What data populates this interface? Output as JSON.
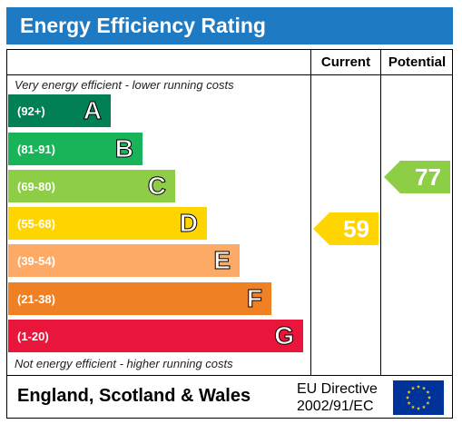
{
  "title": "Energy Efficiency Rating",
  "columns": {
    "current": "Current",
    "potential": "Potential"
  },
  "captions": {
    "top": "Very energy efficient - lower running costs",
    "bottom": "Not energy efficient - higher running costs"
  },
  "bands": [
    {
      "range": "(92+)",
      "letter": "A",
      "color": "#008054"
    },
    {
      "range": "(81-91)",
      "letter": "B",
      "color": "#19b459"
    },
    {
      "range": "(69-80)",
      "letter": "C",
      "color": "#8dce46"
    },
    {
      "range": "(55-68)",
      "letter": "D",
      "color": "#ffd500"
    },
    {
      "range": "(39-54)",
      "letter": "E",
      "color": "#fcaa65"
    },
    {
      "range": "(21-38)",
      "letter": "F",
      "color": "#ef8023"
    },
    {
      "range": "(1-20)",
      "letter": "G",
      "color": "#e9153b"
    }
  ],
  "current": {
    "value": "59",
    "band": "D",
    "color": "#ffd500"
  },
  "potential": {
    "value": "77",
    "band": "C",
    "color": "#8dce46"
  },
  "footer": {
    "country": "England, Scotland & Wales",
    "directive_line1": "EU Directive",
    "directive_line2": "2002/91/EC",
    "flag_icon": "eu-flag-icon"
  }
}
